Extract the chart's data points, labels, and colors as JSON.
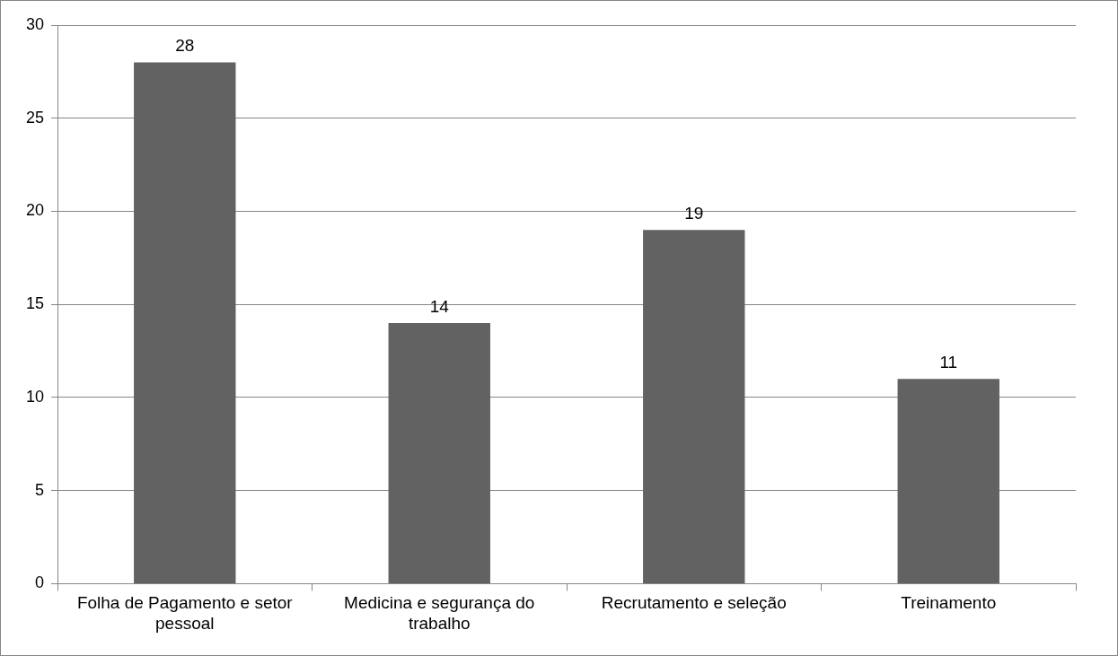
{
  "chart_data": {
    "type": "bar",
    "categories": [
      "Folha de Pagamento e setor pessoal",
      "Medicina e segurança do trabalho",
      "Recrutamento e seleção",
      "Treinamento"
    ],
    "values": [
      28,
      14,
      19,
      11
    ],
    "color": "#626262",
    "ylim": [
      0,
      30
    ],
    "yticks": [
      0,
      5,
      10,
      15,
      20,
      25,
      30
    ],
    "grid": "y",
    "data_labels": true
  }
}
